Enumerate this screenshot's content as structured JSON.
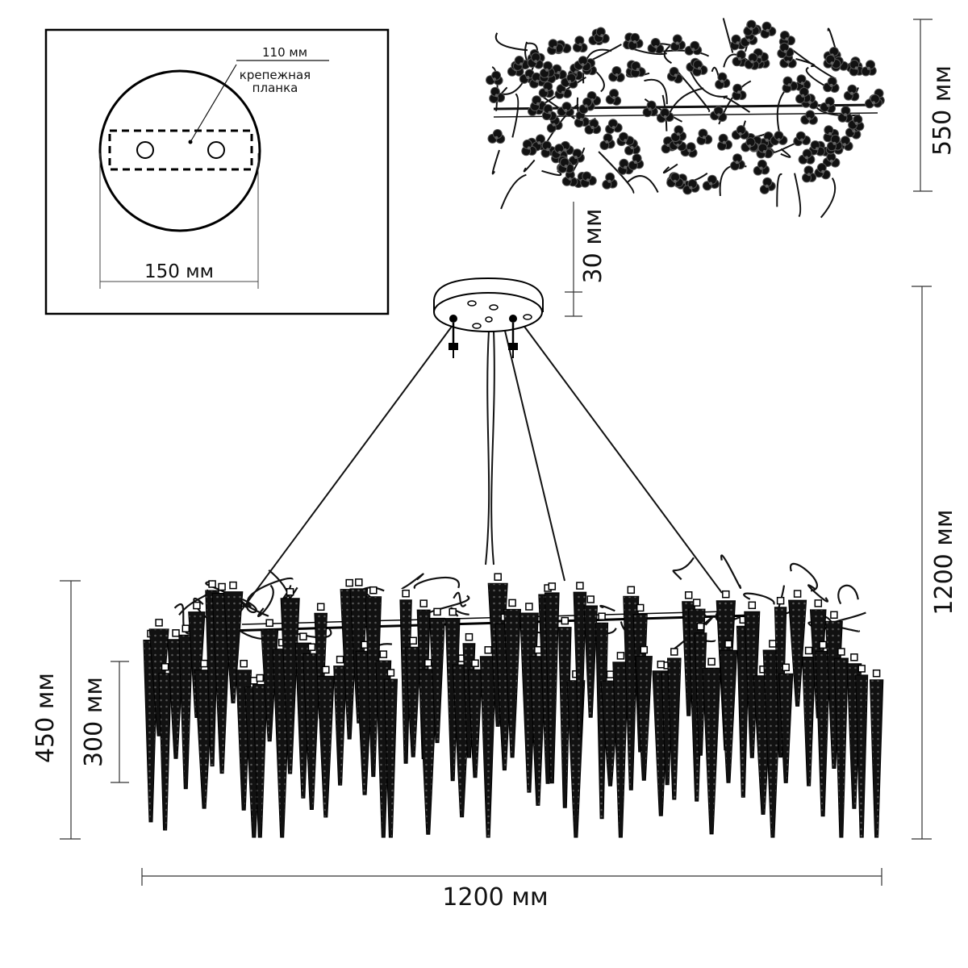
{
  "inset": {
    "bar_width_label": "110 мм",
    "bar_name_line1": "крепежная",
    "bar_name_line2": "планка",
    "canopy_diameter_label": "150 мм"
  },
  "dimensions": {
    "top_view_depth": "550 мм",
    "canopy_height": "30 мм",
    "total_height": "1200 мм",
    "body_height": "450 мм",
    "crystal_length": "300 мм",
    "total_width": "1200 мм"
  },
  "colors": {
    "ink": "#111111",
    "background": "#ffffff"
  }
}
